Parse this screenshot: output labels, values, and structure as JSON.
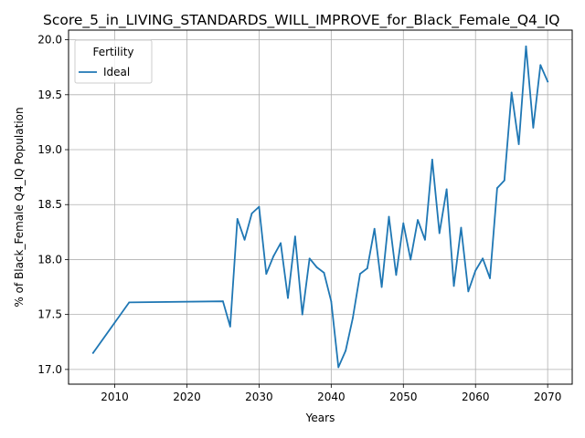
{
  "chart_data": {
    "type": "line",
    "title": "Score_5_in_LIVING_STANDARDS_WILL_IMPROVE_for_Black_Female_Q4_IQ",
    "xlabel": "Years",
    "ylabel": "% of Black_Female Q4_IQ Population",
    "xlim": [
      2003.6,
      2073.4
    ],
    "ylim": [
      16.866,
      20.088
    ],
    "xticks": [
      2010,
      2020,
      2030,
      2040,
      2050,
      2060,
      2070
    ],
    "yticks": [
      17.0,
      17.5,
      18.0,
      18.5,
      19.0,
      19.5,
      20.0
    ],
    "xtick_labels": [
      "2010",
      "2020",
      "2030",
      "2040",
      "2050",
      "2060",
      "2070"
    ],
    "ytick_labels": [
      "17.0",
      "17.5",
      "18.0",
      "18.5",
      "19.0",
      "19.5",
      "20.0"
    ],
    "grid": true,
    "legend": {
      "title": "Fertility",
      "placement": "upper left"
    },
    "series": [
      {
        "name": "Ideal",
        "color": "#1f77b4",
        "x": [
          2007,
          2012,
          2025,
          2026,
          2027,
          2028,
          2029,
          2030,
          2031,
          2032,
          2033,
          2034,
          2035,
          2036,
          2037,
          2038,
          2039,
          2040,
          2041,
          2042,
          2043,
          2044,
          2045,
          2046,
          2047,
          2048,
          2049,
          2050,
          2051,
          2052,
          2053,
          2054,
          2055,
          2056,
          2057,
          2058,
          2059,
          2060,
          2061,
          2062,
          2063,
          2064,
          2065,
          2066,
          2067,
          2068,
          2069,
          2070
        ],
        "y": [
          17.15,
          17.61,
          17.62,
          17.39,
          18.37,
          18.18,
          18.42,
          18.48,
          17.87,
          18.03,
          18.15,
          17.65,
          18.21,
          17.5,
          18.01,
          17.93,
          17.88,
          17.62,
          17.02,
          17.17,
          17.47,
          17.87,
          17.92,
          18.28,
          17.75,
          18.39,
          17.86,
          18.33,
          18.0,
          18.36,
          18.18,
          18.91,
          18.24,
          18.64,
          17.76,
          18.29,
          17.71,
          17.9,
          18.01,
          17.83,
          18.65,
          18.72,
          19.52,
          19.05,
          19.94,
          19.2,
          19.77,
          19.62
        ]
      }
    ]
  }
}
